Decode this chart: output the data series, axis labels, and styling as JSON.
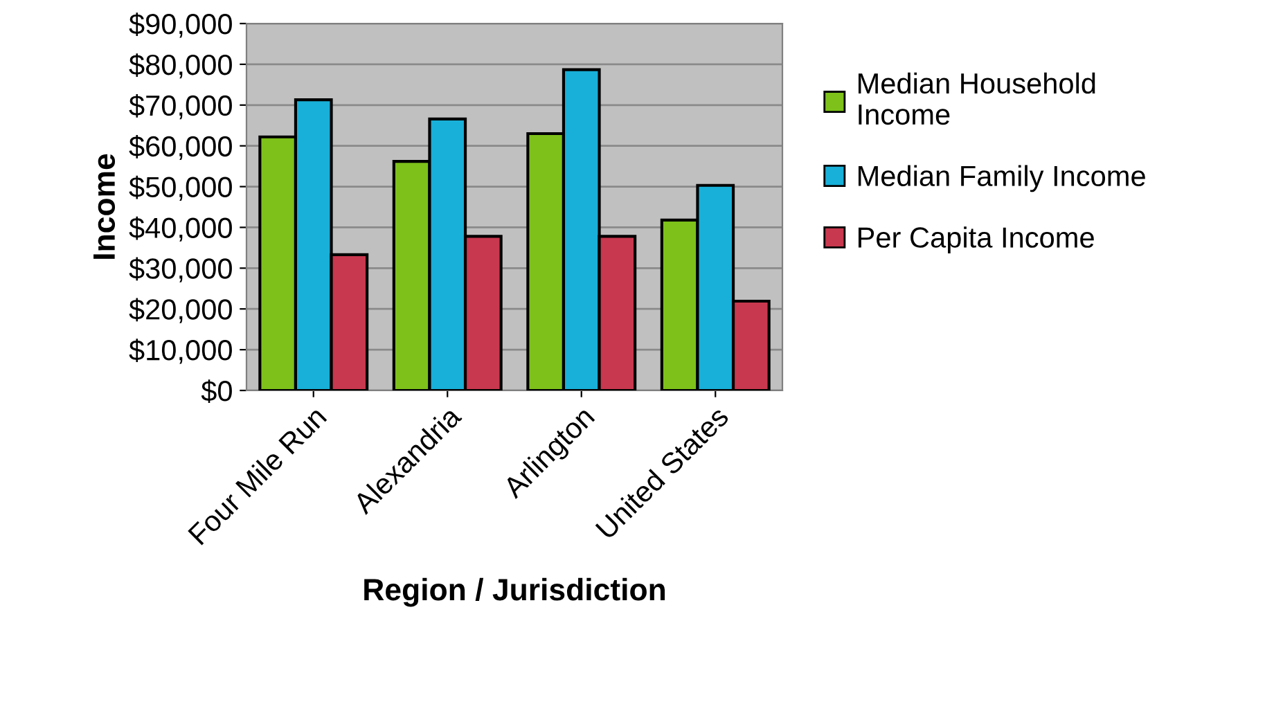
{
  "chart_data": {
    "type": "bar",
    "xlabel": "Region / Jurisdiction",
    "ylabel": "Income",
    "categories": [
      "Four Mile Run",
      "Alexandria",
      "Arlington",
      "United States"
    ],
    "series": [
      {
        "name": "Median Household\nIncome",
        "color": "#7dc11a",
        "values": [
          62200,
          56200,
          63000,
          41800
        ]
      },
      {
        "name": "Median Family Income",
        "color": "#18b0d8",
        "values": [
          71300,
          66600,
          78700,
          50300
        ]
      },
      {
        "name": "Per Capita Income",
        "color": "#c8384e",
        "values": [
          33300,
          37800,
          37800,
          21900
        ]
      }
    ],
    "ylim": [
      0,
      90000
    ],
    "yticks": [
      {
        "value": 0,
        "label": "$0"
      },
      {
        "value": 10000,
        "label": "$10,000"
      },
      {
        "value": 20000,
        "label": "$20,000"
      },
      {
        "value": 30000,
        "label": "$30,000"
      },
      {
        "value": 40000,
        "label": "$40,000"
      },
      {
        "value": 50000,
        "label": "$50,000"
      },
      {
        "value": 60000,
        "label": "$60,000"
      },
      {
        "value": 70000,
        "label": "$70,000"
      },
      {
        "value": 80000,
        "label": "$80,000"
      },
      {
        "value": 90000,
        "label": "$90,000"
      }
    ],
    "grid": "y",
    "legend": "right"
  }
}
